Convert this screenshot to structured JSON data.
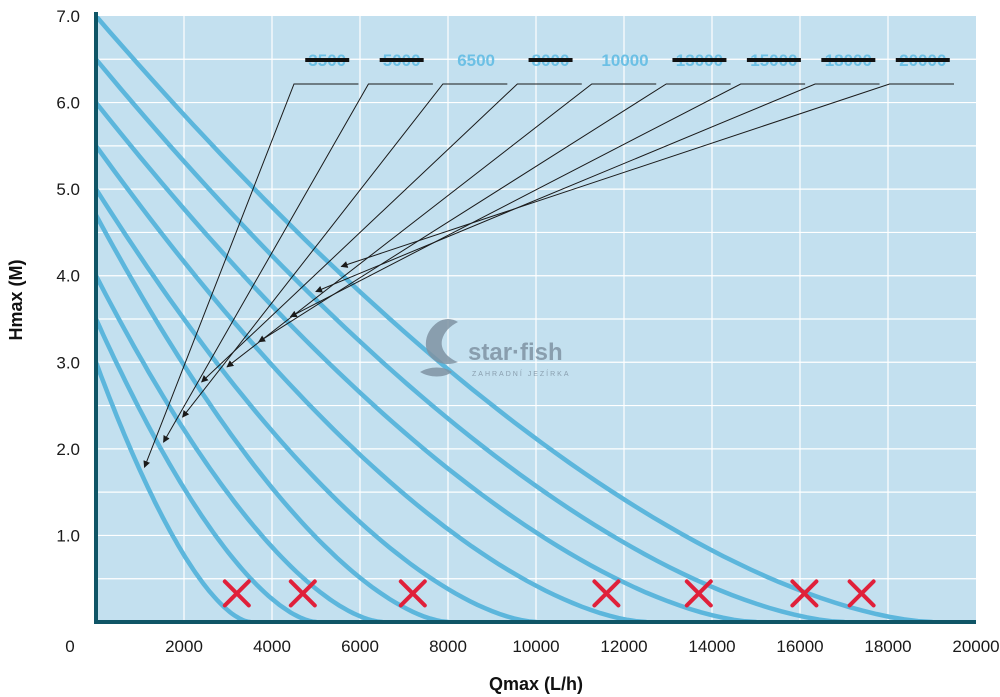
{
  "chart_data": {
    "type": "line",
    "title": "",
    "xlabel": "Qmax (L/h)",
    "ylabel": "Hmax (M)",
    "xlim": [
      0,
      20000
    ],
    "ylim": [
      0,
      7
    ],
    "x_ticks": [
      "0",
      "2000",
      "4000",
      "6000",
      "8000",
      "10000",
      "12000",
      "14000",
      "16000",
      "18000",
      "20000"
    ],
    "y_ticks": [
      "1.0",
      "2.0",
      "3.0",
      "4.0",
      "5.0",
      "6.0",
      "7.0"
    ],
    "y_tick_values": [
      1,
      2,
      3,
      4,
      5,
      6,
      7
    ],
    "grid": true,
    "background_color": "#c3e0ef",
    "line_color": "#5cb6dc",
    "series": [
      {
        "name": "3500",
        "hmax": 3.0,
        "qmax": 3500,
        "active": false,
        "marked_x": 3200
      },
      {
        "name": "5000",
        "hmax": 3.5,
        "qmax": 5000,
        "active": false,
        "marked_x": 4700
      },
      {
        "name": "6500",
        "hmax": 4.0,
        "qmax": 6500,
        "active": true
      },
      {
        "name": "8000",
        "hmax": 4.7,
        "qmax": 8000,
        "active": false,
        "marked_x": 7200
      },
      {
        "name": "10000",
        "hmax": 5.0,
        "qmax": 10000,
        "active": true
      },
      {
        "name": "13000",
        "hmax": 5.5,
        "qmax": 12500,
        "active": false,
        "marked_x": 11600
      },
      {
        "name": "15000",
        "hmax": 6.0,
        "qmax": 15000,
        "active": false,
        "marked_x": 13700
      },
      {
        "name": "18000",
        "hmax": 6.5,
        "qmax": 17000,
        "active": false,
        "marked_x": 16100
      },
      {
        "name": "20000",
        "hmax": 7.0,
        "qmax": 19000,
        "active": false,
        "marked_x": 17400
      }
    ],
    "annotations": {
      "strike_color": "#111111",
      "x_mark_color": "#e0203a",
      "watermark": {
        "brand": "star·fish",
        "tagline": "ZAHRADNÍ JEZÍRKA"
      }
    }
  }
}
